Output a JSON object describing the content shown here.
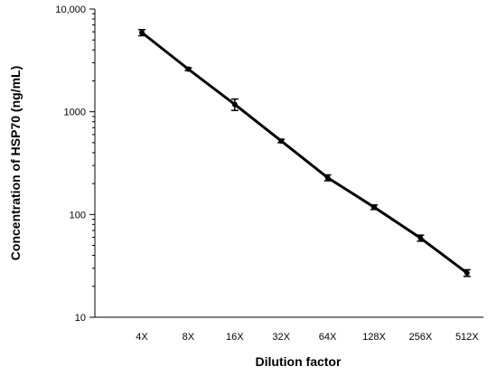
{
  "chart_data": {
    "type": "line",
    "title": "",
    "xlabel": "Dilution factor",
    "ylabel": "Concentration of HSP70 (ng/mL)",
    "yscale": "log",
    "ylim": [
      10,
      10000
    ],
    "ytick_labels": [
      "10",
      "100",
      "1000",
      "10,000"
    ],
    "ytick_values": [
      10,
      100,
      1000,
      10000
    ],
    "categories": [
      "4X",
      "8X",
      "16X",
      "32X",
      "64X",
      "128X",
      "256X",
      "512X"
    ],
    "series": [
      {
        "values": [
          5900,
          2600,
          1180,
          520,
          228,
          118,
          59,
          27
        ],
        "error": [
          400,
          80,
          150,
          20,
          15,
          6,
          4,
          2
        ],
        "color": "#000000"
      }
    ],
    "grid": false,
    "legend": "none"
  }
}
